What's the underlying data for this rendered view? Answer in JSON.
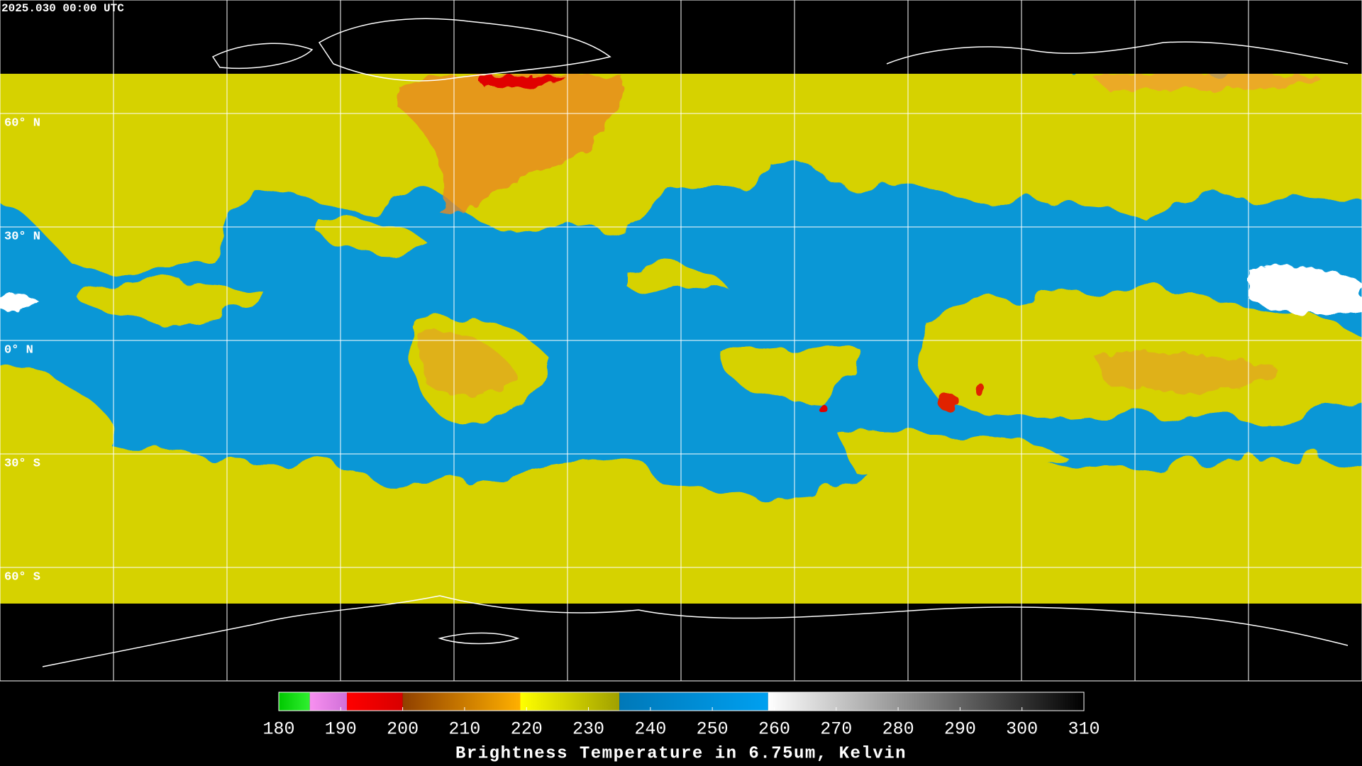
{
  "timestamp": "2025.030 00:00 UTC",
  "map": {
    "latitudes": [
      {
        "value": 60,
        "label": "60° N"
      },
      {
        "value": 30,
        "label": "30° N"
      },
      {
        "value": 0,
        "label": "0° N"
      },
      {
        "value": -30,
        "label": "30° S"
      },
      {
        "value": -60,
        "label": "60° S"
      }
    ]
  },
  "colorbar": {
    "title": "Brightness Temperature in 6.75um, Kelvin",
    "range": [
      180,
      310
    ],
    "ticks": [
      180,
      190,
      200,
      210,
      220,
      230,
      240,
      250,
      260,
      270,
      280,
      290,
      300,
      310
    ],
    "segments": [
      {
        "from": 180,
        "to": 185,
        "colors": [
          "#00c800",
          "#30f030"
        ]
      },
      {
        "from": 185,
        "to": 191,
        "colors": [
          "#f890f0",
          "#d070d8"
        ]
      },
      {
        "from": 191,
        "to": 200,
        "colors": [
          "#ff0000",
          "#d80000"
        ]
      },
      {
        "from": 200,
        "to": 219,
        "colors": [
          "#904000",
          "#ffb000"
        ]
      },
      {
        "from": 219,
        "to": 235,
        "colors": [
          "#ffff00",
          "#a0a000"
        ]
      },
      {
        "from": 235,
        "to": 259,
        "colors": [
          "#0078b8",
          "#00a0f0"
        ]
      },
      {
        "from": 259,
        "to": 310,
        "colors": [
          "#ffffff",
          "#000000"
        ]
      }
    ]
  }
}
